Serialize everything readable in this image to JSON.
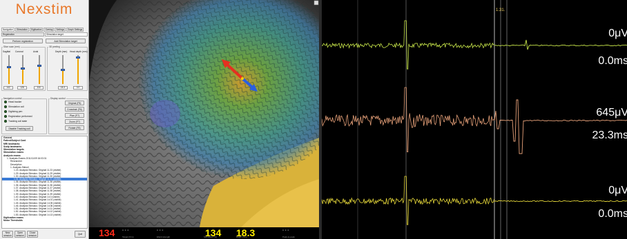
{
  "app": {
    "logo_text": "Nexstim"
  },
  "tabs": [
    "Navigation",
    "Stimulation",
    "Digitization",
    "Overlay",
    "Settings",
    "Graph Settings"
  ],
  "sub_tabs": [
    "Registration",
    "Stimulation target"
  ],
  "buttons": {
    "perform_registration": "Perform registration",
    "add_stimulation_target": "Add Stimulation target"
  },
  "slice_pos": {
    "group": "Slice scan (mm)",
    "labels": [
      "Sagittal",
      "Coronal",
      "Axial"
    ],
    "values": [
      "142",
      "128",
      "116"
    ]
  },
  "peeling": {
    "group": "3D peeling",
    "labels": [
      "Depth (mm)",
      "Head depth (mm)"
    ],
    "values": [
      "18.3",
      "0.0"
    ]
  },
  "nav_control": {
    "group": "Navigation control",
    "items": [
      "Head tracker",
      "Stimulation coil",
      "Digitizing pen",
      "Registration performed",
      "Tracking coil state"
    ],
    "disable_button": "Disable Tracking coil"
  },
  "display_control": {
    "group": "Display control",
    "buttons": [
      "Original (F5)",
      "Crosshair (F6)",
      "Plan (F7)",
      "Zoom (F7)",
      "Rotate (F8)"
    ]
  },
  "tree": {
    "items": [
      {
        "text": "General",
        "bold": true,
        "indent": 0
      },
      {
        "text": "Patient/Subject Card",
        "bold": true,
        "indent": 0
      },
      {
        "text": "MRI landmarks",
        "bold": true,
        "indent": 0
      },
      {
        "text": "Scalp landmarks",
        "bold": true,
        "indent": 0
      },
      {
        "text": "Stimulation targets",
        "bold": true,
        "indent": 0
      },
      {
        "text": "Stimulation exams",
        "bold": true,
        "indent": 0
      },
      {
        "text": "Analysis exams",
        "bold": true,
        "indent": 0
      },
      {
        "text": "1. Analysis Exams 2011/11/09 16:03:31",
        "bold": false,
        "indent": 1
      },
      {
        "text": "Researcher",
        "bold": false,
        "indent": 2
      },
      {
        "text": "Description",
        "bold": false,
        "indent": 2
      },
      {
        "text": "1. Analysis Stimuli",
        "bold": false,
        "indent": 2
      },
      {
        "text": "1.23. Analysis Stimulus: Original 11.23 (visible)",
        "bold": false,
        "indent": 3
      },
      {
        "text": "1.29. Analysis Stimulus: Original 11.29 (visible)",
        "bold": false,
        "indent": 3
      },
      {
        "text": "1.30. Analysis Stimulus: Original 11.30 (visible)",
        "bold": false,
        "indent": 3
      },
      {
        "text": "1.31. Analysis Stimulus: Original 11.31 (visible)",
        "bold": false,
        "indent": 3,
        "selected": true
      },
      {
        "text": "1.36. Analysis Stimulus: Original 11.36 (visible)",
        "bold": false,
        "indent": 3
      },
      {
        "text": "1.36. Analysis Stimulus: Original 11.36 (visible)",
        "bold": false,
        "indent": 3
      },
      {
        "text": "1.37. Analysis Stimulus: Original 11.37 (visible)",
        "bold": false,
        "indent": 3
      },
      {
        "text": "1.38. Analysis Stimulus: Original 11.38 (visible)",
        "bold": false,
        "indent": 3
      },
      {
        "text": "1.39. Analysis Stimulus: Original 11.39 (visible)",
        "bold": false,
        "indent": 3
      },
      {
        "text": "1.40. Analysis Stimulus: Original 14.0 (visible)",
        "bold": false,
        "indent": 3
      },
      {
        "text": "1.41. Analysis Stimulus: Original 14.01 (visible)",
        "bold": false,
        "indent": 3
      },
      {
        "text": "1.45. Analysis Stimulus: Original 14.05 (visible)",
        "bold": false,
        "indent": 3
      },
      {
        "text": "1.46. Analysis Stimulus: Original 14.06 (visible)",
        "bold": false,
        "indent": 3
      },
      {
        "text": "1.51. Analysis Stimulus: Original 14.11 (visible)",
        "bold": false,
        "indent": 3
      },
      {
        "text": "1.52. Analysis Stimulus: Original 14.12 (visible)",
        "bold": false,
        "indent": 3
      },
      {
        "text": "1.53. Analysis Stimulus: Original 14.13 (visible)",
        "bold": false,
        "indent": 3
      },
      {
        "text": "Digitization exams",
        "bold": true,
        "indent": 0
      },
      {
        "text": "Motor Thresholds",
        "bold": true,
        "indent": 0
      }
    ]
  },
  "bottom_buttons": [
    "New session",
    "Open session",
    "Close session",
    "Quit"
  ],
  "status_bar": {
    "left_value": "134",
    "left_value_color": "#ff2a1a",
    "center_value_a": "134",
    "center_value_b": "18.3",
    "center_value_color": "#ffee00",
    "dash": "- - -",
    "labels": [
      "Target (V/m)",
      "Efield strength",
      "Stimulator (%)",
      "Depth (mm)",
      "Peak-to-peak"
    ]
  },
  "emg": {
    "marker_label": "1.31.",
    "channels": [
      {
        "color": "#c8e64a",
        "amplitude": "0μV",
        "latency": "0.0ms",
        "label_left": "Ch1",
        "label_right": "Tr"
      },
      {
        "color": "#e8a27a",
        "amplitude": "645μV",
        "latency": "23.3ms",
        "label_left": "Ch2",
        "label_right": "Tr"
      },
      {
        "color": "#e6d83a",
        "amplitude": "0μV",
        "latency": "0.0ms",
        "label_left": "Ch3",
        "label_right": "Tr"
      }
    ]
  }
}
